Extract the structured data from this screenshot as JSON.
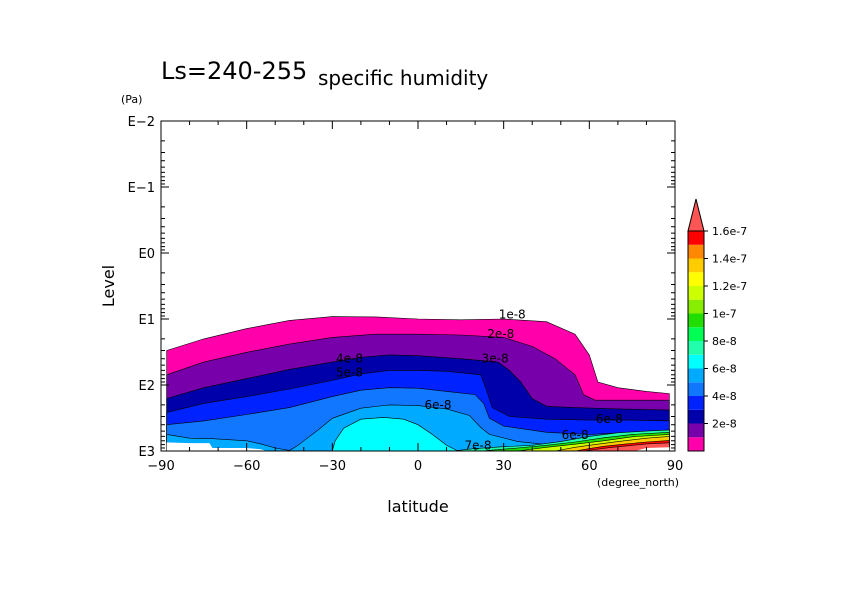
{
  "chart_data": {
    "type": "contour",
    "title_prefix": "Ls=240-255",
    "title": "specific humidity",
    "xlabel": "latitude",
    "xunit": "(degree_north)",
    "ylabel": "Level",
    "yunit": "(Pa)",
    "xlim": [
      -90,
      90
    ],
    "ylim": [
      1000,
      0.01
    ],
    "yscale": "log",
    "x_ticks": [
      {
        "value": -90,
        "label": "−90"
      },
      {
        "value": -60,
        "label": "−60"
      },
      {
        "value": -30,
        "label": "−30"
      },
      {
        "value": 0,
        "label": "0"
      },
      {
        "value": 30,
        "label": "30"
      },
      {
        "value": 60,
        "label": "60"
      },
      {
        "value": 90,
        "label": "90"
      }
    ],
    "y_ticks": [
      {
        "value": 0.01,
        "label": "E−2"
      },
      {
        "value": 0.1,
        "label": "E−1"
      },
      {
        "value": 1,
        "label": "E0"
      },
      {
        "value": 10,
        "label": "E1"
      },
      {
        "value": 100,
        "label": "E2"
      },
      {
        "value": 1000,
        "label": "E3"
      }
    ],
    "levels": [
      {
        "value": 1e-08,
        "color": "#ff00aa"
      },
      {
        "value": 2e-08,
        "color": "#7700aa"
      },
      {
        "value": 3e-08,
        "color": "#0000aa"
      },
      {
        "value": 4e-08,
        "color": "#0022ff"
      },
      {
        "value": 5e-08,
        "color": "#1177ff"
      },
      {
        "value": 6e-08,
        "color": "#00aaff"
      },
      {
        "value": 7e-08,
        "color": "#00ffff"
      },
      {
        "value": 8e-08,
        "color": "#22ffaa"
      },
      {
        "value": 9e-08,
        "color": "#00ff55"
      },
      {
        "value": 1e-07,
        "color": "#22dd00"
      },
      {
        "value": 1.1e-07,
        "color": "#88ee00"
      },
      {
        "value": 1.2e-07,
        "color": "#ccff00"
      },
      {
        "value": 1.3e-07,
        "color": "#ffff00"
      },
      {
        "value": 1.4e-07,
        "color": "#ffcc00"
      },
      {
        "value": 1.5e-07,
        "color": "#ff8800"
      },
      {
        "value": 1.6e-07,
        "color": "#ff0000"
      },
      {
        "value": 1.7e-07,
        "color": "#ff5555"
      }
    ],
    "colorbar_labels": [
      {
        "index": 1,
        "label": "2e-8"
      },
      {
        "index": 3,
        "label": "4e-8"
      },
      {
        "index": 5,
        "label": "6e-8"
      },
      {
        "index": 7,
        "label": "8e-8"
      },
      {
        "index": 9,
        "label": "1e-7"
      },
      {
        "index": 11,
        "label": "1.2e-7"
      },
      {
        "index": 13,
        "label": "1.4e-7"
      },
      {
        "index": 15,
        "label": "1.6e-7"
      }
    ],
    "regions": [
      {
        "level": 0,
        "points": [
          [
            -88,
            30
          ],
          [
            -75,
            20
          ],
          [
            -60,
            14
          ],
          [
            -45,
            10.5
          ],
          [
            -30,
            9.2
          ],
          [
            -15,
            9.3
          ],
          [
            0,
            10
          ],
          [
            15,
            10.3
          ],
          [
            30,
            10
          ],
          [
            45,
            11
          ],
          [
            55,
            17
          ],
          [
            60,
            35
          ],
          [
            63,
            90
          ],
          [
            70,
            110
          ],
          [
            80,
            125
          ],
          [
            88,
            135
          ],
          [
            88,
            1000
          ],
          [
            -88,
            1000
          ]
        ]
      },
      {
        "level": 1,
        "points": [
          [
            -88,
            70
          ],
          [
            -75,
            45
          ],
          [
            -60,
            32
          ],
          [
            -45,
            24
          ],
          [
            -30,
            19
          ],
          [
            -15,
            17
          ],
          [
            0,
            17
          ],
          [
            15,
            17.5
          ],
          [
            30,
            19
          ],
          [
            40,
            26
          ],
          [
            48,
            40
          ],
          [
            55,
            70
          ],
          [
            58,
            140
          ],
          [
            62,
            170
          ],
          [
            75,
            170
          ],
          [
            88,
            170
          ],
          [
            88,
            1000
          ],
          [
            -88,
            1000
          ]
        ]
      },
      {
        "level": 2,
        "points": [
          [
            -88,
            160
          ],
          [
            -75,
            110
          ],
          [
            -60,
            80
          ],
          [
            -45,
            58
          ],
          [
            -30,
            45
          ],
          [
            -20,
            38
          ],
          [
            -10,
            35
          ],
          [
            0,
            36
          ],
          [
            15,
            40
          ],
          [
            28,
            45
          ],
          [
            32,
            60
          ],
          [
            36,
            90
          ],
          [
            40,
            160
          ],
          [
            45,
            210
          ],
          [
            55,
            220
          ],
          [
            70,
            230
          ],
          [
            88,
            240
          ],
          [
            88,
            1000
          ],
          [
            -88,
            1000
          ]
        ]
      },
      {
        "level": 3,
        "points": [
          [
            -88,
            260
          ],
          [
            -75,
            190
          ],
          [
            -60,
            150
          ],
          [
            -45,
            115
          ],
          [
            -30,
            85
          ],
          [
            -20,
            68
          ],
          [
            -10,
            60
          ],
          [
            0,
            60
          ],
          [
            10,
            62
          ],
          [
            22,
            70
          ],
          [
            24,
            120
          ],
          [
            26,
            220
          ],
          [
            32,
            300
          ],
          [
            45,
            330
          ],
          [
            60,
            340
          ],
          [
            75,
            340
          ],
          [
            88,
            350
          ],
          [
            88,
            1000
          ],
          [
            -88,
            1000
          ]
        ]
      },
      {
        "level": 4,
        "points": [
          [
            -88,
            400
          ],
          [
            -75,
            350
          ],
          [
            -60,
            280
          ],
          [
            -45,
            220
          ],
          [
            -30,
            150
          ],
          [
            -20,
            120
          ],
          [
            -10,
            110
          ],
          [
            0,
            112
          ],
          [
            10,
            125
          ],
          [
            20,
            140
          ],
          [
            23,
            190
          ],
          [
            25,
            320
          ],
          [
            30,
            420
          ],
          [
            45,
            520
          ],
          [
            60,
            560
          ],
          [
            75,
            520
          ],
          [
            88,
            480
          ],
          [
            88,
            1000
          ],
          [
            -88,
            1000
          ]
        ]
      },
      {
        "level": 5,
        "points": [
          [
            -88,
            560
          ],
          [
            -80,
            640
          ],
          [
            -72,
            650
          ],
          [
            -60,
            700
          ],
          [
            -55,
            780
          ],
          [
            -50,
            900
          ],
          [
            -45,
            980
          ],
          [
            -42,
            820
          ],
          [
            -40,
            700
          ],
          [
            -35,
            480
          ],
          [
            -30,
            320
          ],
          [
            -20,
            225
          ],
          [
            -10,
            200
          ],
          [
            0,
            205
          ],
          [
            10,
            230
          ],
          [
            18,
            290
          ],
          [
            22,
            440
          ],
          [
            25,
            560
          ],
          [
            35,
            720
          ],
          [
            45,
            800
          ],
          [
            60,
            780
          ],
          [
            75,
            700
          ],
          [
            88,
            620
          ],
          [
            88,
            1000
          ],
          [
            -88,
            1000
          ]
        ]
      },
      {
        "level": 6,
        "points": [
          [
            -30,
            1000
          ],
          [
            -29,
            700
          ],
          [
            -26,
            450
          ],
          [
            -20,
            330
          ],
          [
            -12,
            310
          ],
          [
            -5,
            330
          ],
          [
            0,
            400
          ],
          [
            5,
            560
          ],
          [
            10,
            820
          ],
          [
            14,
            1000
          ]
        ]
      },
      {
        "level": 7,
        "points": [
          [
            12,
            1000
          ],
          [
            20,
            920
          ],
          [
            30,
            860
          ],
          [
            40,
            820
          ],
          [
            50,
            720
          ],
          [
            60,
            600
          ],
          [
            70,
            530
          ],
          [
            80,
            500
          ],
          [
            88,
            480
          ],
          [
            88,
            1000
          ]
        ]
      },
      {
        "level": 9,
        "points": [
          [
            22,
            1000
          ],
          [
            35,
            900
          ],
          [
            45,
            820
          ],
          [
            55,
            730
          ],
          [
            65,
            630
          ],
          [
            75,
            560
          ],
          [
            88,
            520
          ],
          [
            88,
            1000
          ]
        ]
      },
      {
        "level": 11,
        "points": [
          [
            35,
            1000
          ],
          [
            45,
            880
          ],
          [
            55,
            790
          ],
          [
            65,
            700
          ],
          [
            75,
            610
          ],
          [
            88,
            560
          ],
          [
            88,
            1000
          ]
        ]
      },
      {
        "level": 13,
        "points": [
          [
            48,
            1000
          ],
          [
            55,
            880
          ],
          [
            62,
            800
          ],
          [
            70,
            720
          ],
          [
            80,
            640
          ],
          [
            88,
            600
          ],
          [
            88,
            1000
          ]
        ]
      },
      {
        "level": 15,
        "points": [
          [
            55,
            1000
          ],
          [
            60,
            920
          ],
          [
            65,
            850
          ],
          [
            72,
            790
          ],
          [
            80,
            730
          ],
          [
            88,
            690
          ],
          [
            88,
            1000
          ]
        ]
      },
      {
        "level": 16,
        "points": [
          [
            58,
            1000
          ],
          [
            62,
            950
          ],
          [
            68,
            880
          ],
          [
            74,
            830
          ],
          [
            80,
            780
          ],
          [
            88,
            750
          ],
          [
            88,
            1000
          ]
        ]
      }
    ],
    "contour_labels": [
      {
        "lat": 33,
        "p": 8.5,
        "text": "1e-8"
      },
      {
        "lat": 29,
        "p": 17,
        "text": "2e-8"
      },
      {
        "lat": 27,
        "p": 40,
        "text": "3e-8"
      },
      {
        "lat": -24,
        "p": 40,
        "text": "4e-8"
      },
      {
        "lat": -24,
        "p": 65,
        "text": "5e-8"
      },
      {
        "lat": 7,
        "p": 200,
        "text": "6e-8"
      },
      {
        "lat": 21,
        "p": 820,
        "text": "7e-8"
      },
      {
        "lat": 55,
        "p": 570,
        "text": "6e-8"
      },
      {
        "lat": 67,
        "p": 330,
        "text": "6e-8"
      }
    ],
    "missing_regions": [
      {
        "points": [
          [
            -88,
            1000
          ],
          [
            -88,
            740
          ],
          [
            -80,
            760
          ],
          [
            -73,
            760
          ],
          [
            -72,
            900
          ],
          [
            -60,
            900
          ],
          [
            -55,
            940
          ],
          [
            -53,
            1000
          ]
        ]
      },
      {
        "points": [
          [
            76,
            1000
          ],
          [
            80,
            900
          ],
          [
            88,
            880
          ],
          [
            88,
            1000
          ]
        ]
      }
    ]
  }
}
